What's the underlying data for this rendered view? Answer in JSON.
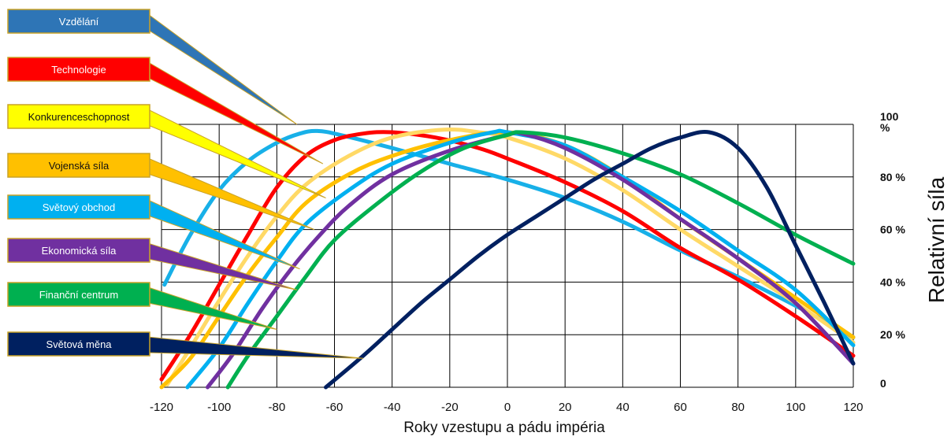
{
  "chart_data": {
    "type": "line",
    "xlabel": "Roky vzestupu a pádu impéria",
    "ylabel": "Relativní síla",
    "xlim": [
      -120,
      120
    ],
    "ylim": [
      0,
      100
    ],
    "x_ticks": [
      -120,
      -100,
      -80,
      -60,
      -40,
      -20,
      0,
      20,
      40,
      60,
      80,
      100,
      120
    ],
    "y_ticks": [
      {
        "value": 0,
        "label": "0"
      },
      {
        "value": 20,
        "label": "20 %"
      },
      {
        "value": 40,
        "label": "40 %"
      },
      {
        "value": 60,
        "label": "60 %"
      },
      {
        "value": 80,
        "label": "80 %"
      },
      {
        "value": 100,
        "label": "100\n%"
      }
    ],
    "grid": true,
    "series": [
      {
        "name": "Vzdělání",
        "color": "#2e75b6",
        "line_color": "#18b0e8",
        "text_color": "#ffffff",
        "points": [
          [
            -119,
            39
          ],
          [
            -110,
            58
          ],
          [
            -100,
            75
          ],
          [
            -90,
            86
          ],
          [
            -80,
            93
          ],
          [
            -72,
            96.5
          ],
          [
            -66,
            97.5
          ],
          [
            -58,
            96
          ],
          [
            -40,
            91
          ],
          [
            -20,
            85
          ],
          [
            0,
            79
          ],
          [
            20,
            72
          ],
          [
            40,
            63
          ],
          [
            60,
            52
          ],
          [
            80,
            42
          ],
          [
            100,
            31
          ],
          [
            120,
            19
          ]
        ]
      },
      {
        "name": "Technologie",
        "color": "#ff0000",
        "line_color": "#ff0000",
        "text_color": "#ffffff",
        "points": [
          [
            -120,
            3
          ],
          [
            -110,
            20
          ],
          [
            -100,
            39
          ],
          [
            -90,
            58
          ],
          [
            -80,
            76
          ],
          [
            -70,
            88
          ],
          [
            -60,
            94
          ],
          [
            -50,
            96.5
          ],
          [
            -40,
            97
          ],
          [
            -25,
            95
          ],
          [
            -10,
            91
          ],
          [
            0,
            87
          ],
          [
            20,
            78
          ],
          [
            40,
            67
          ],
          [
            60,
            53
          ],
          [
            80,
            41
          ],
          [
            100,
            27
          ],
          [
            120,
            12
          ]
        ]
      },
      {
        "name": "Konkurenceschopnost",
        "color": "#ffff00",
        "line_color": "#ffd966",
        "text_color": "#111111",
        "points": [
          [
            -118,
            1
          ],
          [
            -110,
            15
          ],
          [
            -100,
            33
          ],
          [
            -90,
            50
          ],
          [
            -80,
            65
          ],
          [
            -70,
            77
          ],
          [
            -55,
            88
          ],
          [
            -40,
            95
          ],
          [
            -22,
            98
          ],
          [
            -10,
            97
          ],
          [
            0,
            95
          ],
          [
            20,
            87
          ],
          [
            40,
            75
          ],
          [
            60,
            60
          ],
          [
            80,
            46
          ],
          [
            100,
            32
          ],
          [
            120,
            17
          ]
        ]
      },
      {
        "name": "Vojenská síla",
        "color": "#ffc000",
        "line_color": "#ffc000",
        "text_color": "#111111",
        "points": [
          [
            -120,
            0
          ],
          [
            -110,
            11
          ],
          [
            -100,
            27
          ],
          [
            -90,
            43
          ],
          [
            -80,
            57
          ],
          [
            -70,
            70
          ],
          [
            -55,
            81
          ],
          [
            -40,
            88
          ],
          [
            -20,
            94
          ],
          [
            0,
            97
          ],
          [
            20,
            92
          ],
          [
            40,
            80
          ],
          [
            60,
            64
          ],
          [
            80,
            49
          ],
          [
            100,
            34
          ],
          [
            120,
            19
          ]
        ]
      },
      {
        "name": "Světový obchod",
        "color": "#00b0f0",
        "line_color": "#00b0f0",
        "text_color": "#ffffff",
        "points": [
          [
            -111,
            0
          ],
          [
            -100,
            15
          ],
          [
            -90,
            32
          ],
          [
            -80,
            48
          ],
          [
            -70,
            62
          ],
          [
            -55,
            75
          ],
          [
            -40,
            85
          ],
          [
            -20,
            93
          ],
          [
            -5,
            97
          ],
          [
            0,
            97
          ],
          [
            20,
            92
          ],
          [
            40,
            80
          ],
          [
            60,
            67
          ],
          [
            80,
            52
          ],
          [
            100,
            37
          ],
          [
            120,
            16
          ]
        ]
      },
      {
        "name": "Ekonomická síla",
        "color": "#7030a0",
        "line_color": "#7030a0",
        "text_color": "#ffffff",
        "points": [
          [
            -104,
            0
          ],
          [
            -95,
            13
          ],
          [
            -85,
            30
          ],
          [
            -75,
            45
          ],
          [
            -65,
            58
          ],
          [
            -55,
            69
          ],
          [
            -40,
            81
          ],
          [
            -20,
            90
          ],
          [
            0,
            96
          ],
          [
            5,
            96.5
          ],
          [
            20,
            91
          ],
          [
            40,
            79
          ],
          [
            60,
            64
          ],
          [
            80,
            49
          ],
          [
            100,
            32
          ],
          [
            120,
            9
          ]
        ]
      },
      {
        "name": "Finanční centrum",
        "color": "#00b050",
        "line_color": "#00b050",
        "text_color": "#ffffff",
        "points": [
          [
            -97,
            0
          ],
          [
            -90,
            12
          ],
          [
            -80,
            27
          ],
          [
            -70,
            42
          ],
          [
            -60,
            56
          ],
          [
            -45,
            70
          ],
          [
            -30,
            82
          ],
          [
            -15,
            91
          ],
          [
            0,
            96
          ],
          [
            5,
            97
          ],
          [
            20,
            95
          ],
          [
            40,
            89
          ],
          [
            60,
            81
          ],
          [
            80,
            70
          ],
          [
            100,
            58
          ],
          [
            120,
            47
          ]
        ]
      },
      {
        "name": "Světová měna",
        "color": "#002060",
        "line_color": "#002060",
        "text_color": "#ffffff",
        "points": [
          [
            -63,
            0
          ],
          [
            -50,
            12
          ],
          [
            -40,
            22
          ],
          [
            -30,
            32
          ],
          [
            -20,
            41
          ],
          [
            -10,
            50
          ],
          [
            0,
            58
          ],
          [
            10,
            65
          ],
          [
            20,
            72
          ],
          [
            30,
            79
          ],
          [
            40,
            85
          ],
          [
            50,
            91
          ],
          [
            60,
            95
          ],
          [
            70,
            97
          ],
          [
            80,
            91
          ],
          [
            90,
            76
          ],
          [
            100,
            54
          ],
          [
            110,
            32
          ],
          [
            120,
            9
          ]
        ]
      }
    ],
    "legend_targets": [
      [
        -73,
        100
      ],
      [
        -64,
        85
      ],
      [
        -63,
        72
      ],
      [
        -67,
        60
      ],
      [
        -72,
        45
      ],
      [
        -73,
        37
      ],
      [
        -80,
        22
      ],
      [
        -50,
        11
      ]
    ]
  }
}
